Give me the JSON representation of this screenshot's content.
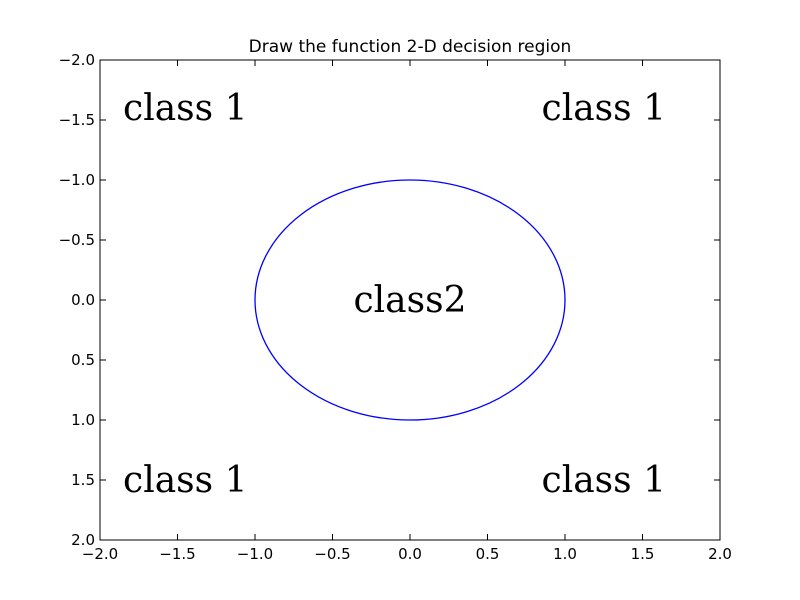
{
  "chart_data": {
    "type": "line",
    "title": "Draw the function 2-D decision region",
    "xlabel": "",
    "ylabel": "",
    "xlim": [
      -2.0,
      2.0
    ],
    "ylim": [
      -2.0,
      2.0
    ],
    "y_axis_inverted": true,
    "grid": false,
    "x_ticks": [
      -2.0,
      -1.5,
      -1.0,
      -0.5,
      0.0,
      0.5,
      1.0,
      1.5,
      2.0
    ],
    "x_tick_labels": [
      "−2.0",
      "−1.5",
      "−1.0",
      "−0.5",
      "0.0",
      "0.5",
      "1.0",
      "1.5",
      "2.0"
    ],
    "y_ticks": [
      -2.0,
      -1.5,
      -1.0,
      -0.5,
      0.0,
      0.5,
      1.0,
      1.5,
      2.0
    ],
    "y_tick_labels": [
      "−2.0",
      "−1.5",
      "−1.0",
      "−0.5",
      "0.0",
      "0.5",
      "1.0",
      "1.5",
      "2.0"
    ],
    "series": [
      {
        "shape": "circle",
        "center": [
          0.0,
          0.0
        ],
        "radius": 1.0,
        "color": "#0000ff"
      }
    ],
    "annotations": [
      {
        "text": "class 1",
        "x": -1.45,
        "y": -1.6
      },
      {
        "text": "class 1",
        "x": 1.25,
        "y": -1.6
      },
      {
        "text": "class2",
        "x": 0.0,
        "y": 0.0
      },
      {
        "text": "class 1",
        "x": -1.45,
        "y": 1.5
      },
      {
        "text": "class 1",
        "x": 1.25,
        "y": 1.5
      }
    ]
  }
}
